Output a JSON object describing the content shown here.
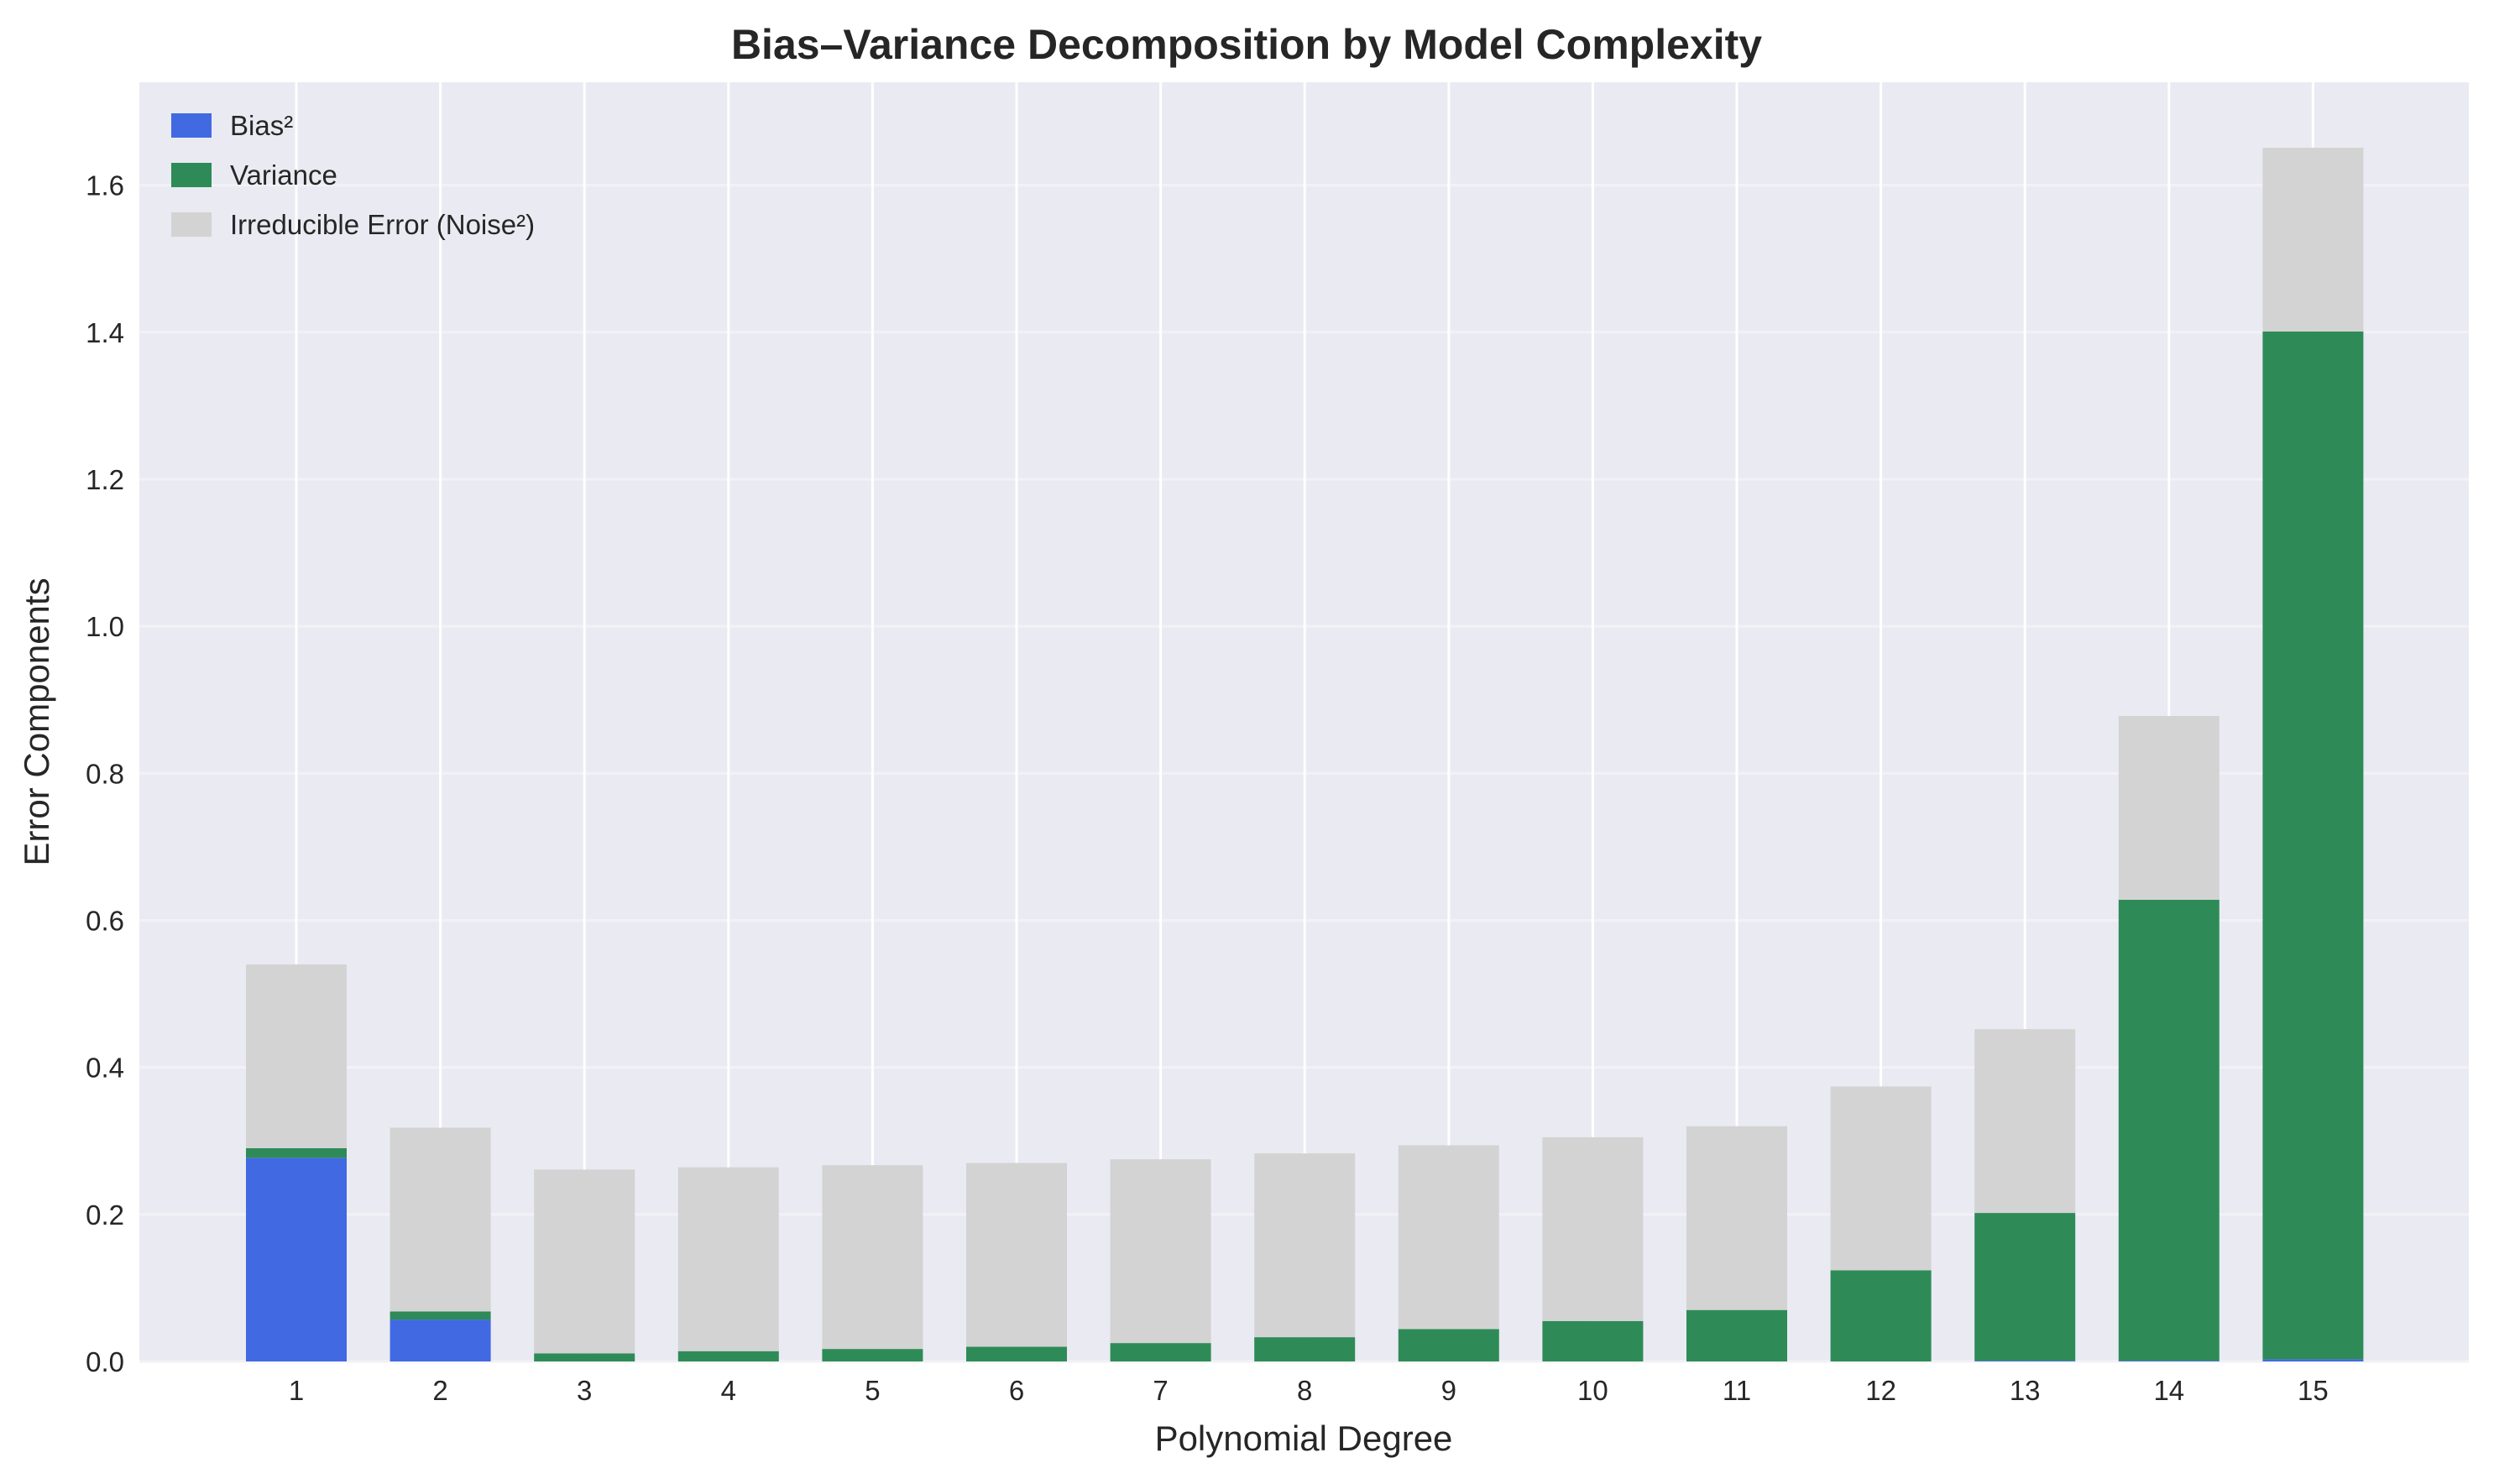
{
  "chart_data": {
    "type": "bar",
    "stacked": true,
    "title": "Bias–Variance Decomposition by Model Complexity",
    "xlabel": "Polynomial Degree",
    "ylabel": "Error Components",
    "categories": [
      "1",
      "2",
      "3",
      "4",
      "5",
      "6",
      "7",
      "8",
      "9",
      "10",
      "11",
      "12",
      "13",
      "14",
      "15"
    ],
    "ylim": [
      0,
      1.74
    ],
    "yticks": [
      "0.0",
      "0.2",
      "0.4",
      "0.6",
      "0.8",
      "1.0",
      "1.2",
      "1.4",
      "1.6"
    ],
    "ytick_values": [
      0,
      0.2,
      0.4,
      0.6,
      0.8,
      1.0,
      1.2,
      1.4,
      1.6
    ],
    "grid": true,
    "legend_position": "top-left",
    "series": [
      {
        "name": "Bias²",
        "color": "#4169E1",
        "values": [
          0.277,
          0.057,
          0.0,
          0.0,
          0.0,
          0.0,
          0.0,
          0.0,
          0.0,
          0.0,
          0.0,
          0.0,
          0.001,
          0.001,
          0.003
        ]
      },
      {
        "name": "Variance",
        "color": "#2E8B57",
        "values": [
          0.013,
          0.011,
          0.011,
          0.014,
          0.017,
          0.02,
          0.025,
          0.033,
          0.044,
          0.055,
          0.07,
          0.124,
          0.201,
          0.627,
          1.398
        ]
      },
      {
        "name": "Irreducible Error (Noise²)",
        "color": "#D3D3D3",
        "values": [
          0.25,
          0.25,
          0.25,
          0.25,
          0.25,
          0.25,
          0.25,
          0.25,
          0.25,
          0.25,
          0.25,
          0.25,
          0.25,
          0.25,
          0.25
        ]
      }
    ]
  },
  "style": {
    "plot_background": "#EAEAF2",
    "grid_color": "#FFFFFF",
    "text_color": "#262626"
  }
}
